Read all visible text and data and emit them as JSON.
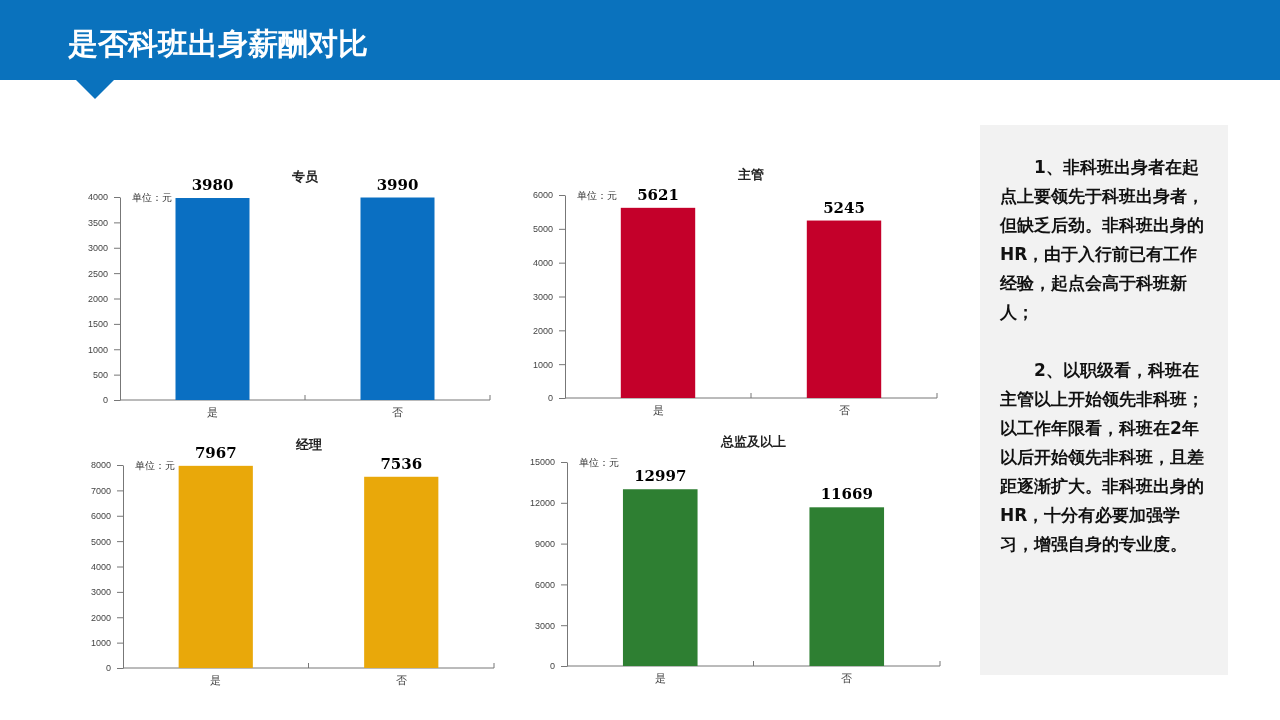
{
  "chart_data": [
    {
      "type": "other",
      "title": "是否科班出身薪酬对比"
    },
    {
      "type": "bar",
      "title": "专员",
      "annotations": [
        "单位：元"
      ],
      "categories": [
        "是",
        "否"
      ],
      "values": [
        3980,
        3990
      ],
      "color": "#0a6fc2",
      "ylim": [
        0,
        4000
      ],
      "yticks": [
        0,
        500,
        1000,
        1500,
        2000,
        2500,
        3000,
        3500,
        4000
      ],
      "data_labels": true
    },
    {
      "type": "bar",
      "title": "主管",
      "annotations": [
        "单位：元"
      ],
      "categories": [
        "是",
        "否"
      ],
      "values": [
        5621,
        5245
      ],
      "color": "#c4002a",
      "ylim": [
        0,
        6000
      ],
      "yticks": [
        0,
        1000,
        2000,
        3000,
        4000,
        5000,
        6000
      ],
      "data_labels": true
    },
    {
      "type": "bar",
      "title": "经理",
      "annotations": [
        "单位：元"
      ],
      "categories": [
        "是",
        "否"
      ],
      "values": [
        7967,
        7536
      ],
      "color": "#e9a80a",
      "ylim": [
        0,
        8000
      ],
      "yticks": [
        0,
        1000,
        2000,
        3000,
        4000,
        5000,
        6000,
        7000,
        8000
      ],
      "data_labels": true
    },
    {
      "type": "bar",
      "title": "总监及以上",
      "annotations": [
        "单位：元"
      ],
      "categories": [
        "是",
        "否"
      ],
      "values": [
        12997,
        11669
      ],
      "color": "#2e7f32",
      "ylim": [
        0,
        15000
      ],
      "yticks": [
        0,
        3000,
        6000,
        9000,
        12000,
        15000
      ],
      "data_labels": true
    },
    {
      "type": "other",
      "annotations": [
        "1、非科班出身者在起点上要领先于科班出身者，但缺乏后劲。非科班出身的HR，由于入行前已有工作经验，起点会高于科班新人；",
        "2、以职级看，科班在主管以上开始领先非科班；以工作年限看，科班在2年以后开始领先非科班，且差距逐渐扩大。非科班出身的HR，十分有必要加强学习，增强自身的专业度。"
      ]
    }
  ]
}
